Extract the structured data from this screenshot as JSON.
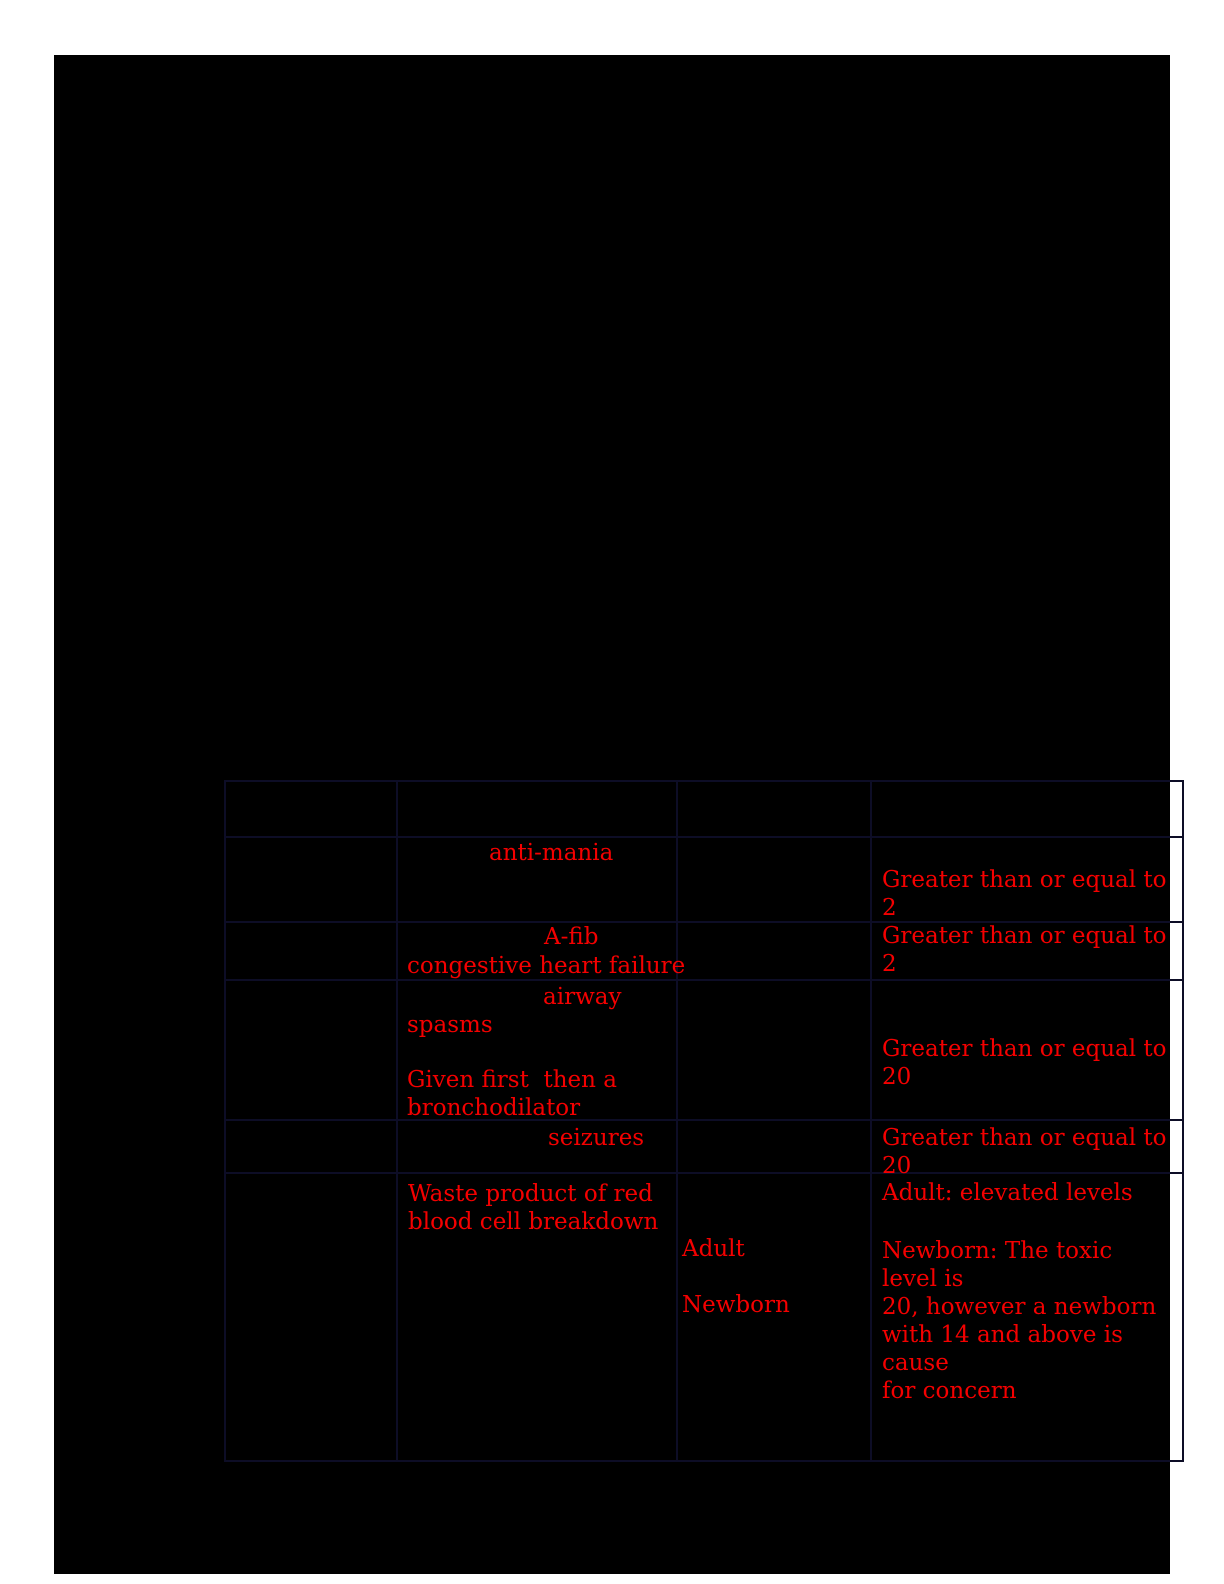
{
  "page": {
    "background_color": "#000000",
    "accent_color": "#f40000",
    "gridline_color": "#0d0d26"
  },
  "table": {
    "grid": {
      "columns": 4,
      "rows": 6
    },
    "visible_cell_text": {
      "row2_col2": "anti-mania",
      "row2_col4": "Greater than or equal to 2",
      "row3_col2_line1": "A-fib",
      "row3_col2_line2": "congestive heart failure",
      "row3_col4": "Greater than or equal to 2",
      "row4_col2_word1": "airway",
      "row4_col2_word2": "spasms",
      "row4_col2_para2": "Given first  then a\nbronchodilator",
      "row4_col4": "Greater than or equal to 20",
      "row5_col2": "seizures",
      "row5_col4": "Greater than or equal to 20",
      "row6_col2": "Waste product of red\nblood cell breakdown",
      "row6_col3_item1": "Adult",
      "row6_col3_item2": "Newborn",
      "row6_col4_para1": "Adult: elevated levels",
      "row6_col4_para2": "Newborn: The toxic level is\n20, however a newborn\nwith 14 and above is cause\nfor concern"
    }
  }
}
